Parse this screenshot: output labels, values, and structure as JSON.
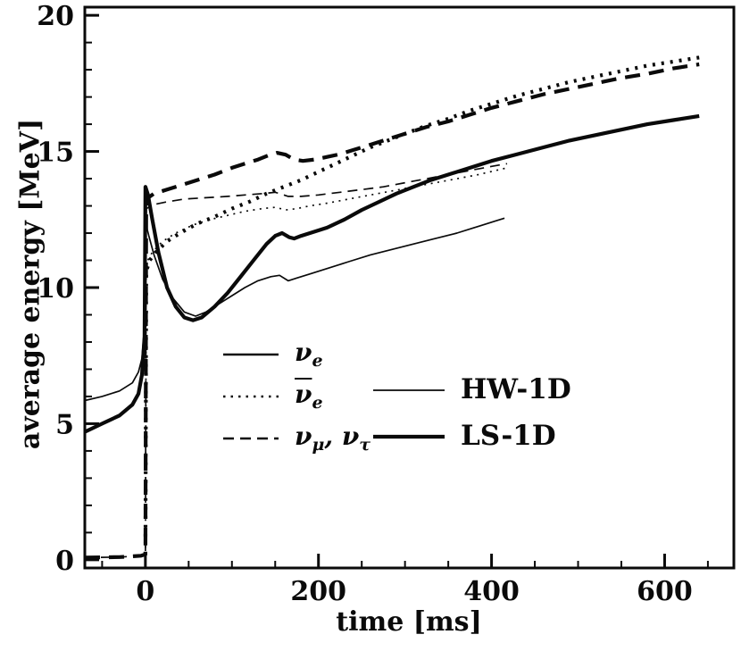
{
  "figure": {
    "background": "#ffffff",
    "ink": "#0a0a0a"
  },
  "chart_data": {
    "type": "line",
    "title": "",
    "xlabel": "time [ms]",
    "ylabel": "average energy [MeV]",
    "xlim": [
      -70,
      680
    ],
    "ylim": [
      -0.3,
      20.3
    ],
    "xticks": [
      0,
      200,
      400,
      600
    ],
    "yticks": [
      0,
      5,
      10,
      15,
      20
    ],
    "x_minor_step": 50,
    "y_minor_step": 1,
    "grid": false,
    "legend_position": "inside-center",
    "series": [
      {
        "name": "HW-1D nu_e",
        "model": "HW-1D",
        "species": "nu_e",
        "dash": "solid",
        "weight": "thin",
        "points": [
          [
            -70,
            5.85
          ],
          [
            -50,
            6.0
          ],
          [
            -30,
            6.2
          ],
          [
            -15,
            6.5
          ],
          [
            -8,
            6.9
          ],
          [
            -4,
            7.4
          ],
          [
            -1,
            8.6
          ],
          [
            0,
            12.4
          ],
          [
            4,
            11.9
          ],
          [
            10,
            11.2
          ],
          [
            20,
            10.3
          ],
          [
            32,
            9.6
          ],
          [
            45,
            9.1
          ],
          [
            58,
            8.95
          ],
          [
            70,
            9.1
          ],
          [
            85,
            9.4
          ],
          [
            100,
            9.7
          ],
          [
            115,
            10.0
          ],
          [
            130,
            10.25
          ],
          [
            145,
            10.4
          ],
          [
            155,
            10.45
          ],
          [
            165,
            10.25
          ],
          [
            175,
            10.35
          ],
          [
            190,
            10.5
          ],
          [
            210,
            10.7
          ],
          [
            235,
            10.95
          ],
          [
            260,
            11.2
          ],
          [
            285,
            11.4
          ],
          [
            310,
            11.6
          ],
          [
            335,
            11.8
          ],
          [
            360,
            12.0
          ],
          [
            385,
            12.25
          ],
          [
            405,
            12.45
          ],
          [
            415,
            12.55
          ]
        ]
      },
      {
        "name": "HW-1D nubar_e",
        "model": "HW-1D",
        "species": "nubar_e",
        "dash": "dotted",
        "weight": "thin",
        "points": [
          [
            0,
            0.2
          ],
          [
            1,
            10.9
          ],
          [
            8,
            11.3
          ],
          [
            20,
            11.7
          ],
          [
            35,
            12.0
          ],
          [
            55,
            12.3
          ],
          [
            75,
            12.5
          ],
          [
            95,
            12.65
          ],
          [
            115,
            12.8
          ],
          [
            135,
            12.9
          ],
          [
            150,
            12.95
          ],
          [
            162,
            12.85
          ],
          [
            175,
            12.9
          ],
          [
            190,
            13.0
          ],
          [
            210,
            13.1
          ],
          [
            235,
            13.25
          ],
          [
            260,
            13.4
          ],
          [
            285,
            13.55
          ],
          [
            310,
            13.7
          ],
          [
            335,
            13.85
          ],
          [
            360,
            14.0
          ],
          [
            385,
            14.15
          ],
          [
            405,
            14.3
          ],
          [
            418,
            14.4
          ]
        ]
      },
      {
        "name": "HW-1D nu_mu_tau",
        "model": "HW-1D",
        "species": "nu_mu_tau",
        "dash": "dashed",
        "weight": "thin",
        "points": [
          [
            -70,
            0.08
          ],
          [
            -30,
            0.1
          ],
          [
            -5,
            0.15
          ],
          [
            0,
            0.2
          ],
          [
            1,
            12.9
          ],
          [
            10,
            13.05
          ],
          [
            25,
            13.15
          ],
          [
            45,
            13.25
          ],
          [
            70,
            13.3
          ],
          [
            95,
            13.35
          ],
          [
            115,
            13.4
          ],
          [
            135,
            13.45
          ],
          [
            150,
            13.5
          ],
          [
            165,
            13.35
          ],
          [
            180,
            13.35
          ],
          [
            200,
            13.4
          ],
          [
            225,
            13.5
          ],
          [
            250,
            13.6
          ],
          [
            275,
            13.7
          ],
          [
            300,
            13.85
          ],
          [
            325,
            14.0
          ],
          [
            350,
            14.15
          ],
          [
            375,
            14.3
          ],
          [
            400,
            14.45
          ],
          [
            418,
            14.55
          ]
        ]
      },
      {
        "name": "LS-1D nu_e",
        "model": "LS-1D",
        "species": "nu_e",
        "dash": "solid",
        "weight": "thick",
        "points": [
          [
            -70,
            4.7
          ],
          [
            -50,
            5.0
          ],
          [
            -30,
            5.3
          ],
          [
            -15,
            5.7
          ],
          [
            -8,
            6.1
          ],
          [
            -4,
            6.8
          ],
          [
            -1,
            8.2
          ],
          [
            0,
            13.7
          ],
          [
            3,
            13.4
          ],
          [
            8,
            12.5
          ],
          [
            15,
            11.3
          ],
          [
            25,
            10.0
          ],
          [
            35,
            9.3
          ],
          [
            45,
            8.9
          ],
          [
            55,
            8.8
          ],
          [
            65,
            8.9
          ],
          [
            80,
            9.3
          ],
          [
            95,
            9.8
          ],
          [
            110,
            10.4
          ],
          [
            125,
            11.0
          ],
          [
            140,
            11.6
          ],
          [
            150,
            11.9
          ],
          [
            158,
            12.0
          ],
          [
            166,
            11.85
          ],
          [
            172,
            11.8
          ],
          [
            180,
            11.9
          ],
          [
            195,
            12.05
          ],
          [
            210,
            12.2
          ],
          [
            230,
            12.5
          ],
          [
            250,
            12.85
          ],
          [
            270,
            13.15
          ],
          [
            290,
            13.45
          ],
          [
            310,
            13.7
          ],
          [
            330,
            13.95
          ],
          [
            350,
            14.15
          ],
          [
            375,
            14.4
          ],
          [
            400,
            14.65
          ],
          [
            430,
            14.9
          ],
          [
            460,
            15.15
          ],
          [
            490,
            15.4
          ],
          [
            520,
            15.6
          ],
          [
            550,
            15.8
          ],
          [
            580,
            16.0
          ],
          [
            610,
            16.15
          ],
          [
            640,
            16.3
          ]
        ]
      },
      {
        "name": "LS-1D nubar_e",
        "model": "LS-1D",
        "species": "nubar_e",
        "dash": "dotted",
        "weight": "thick",
        "points": [
          [
            0,
            0.2
          ],
          [
            1,
            10.6
          ],
          [
            5,
            11.0
          ],
          [
            12,
            11.3
          ],
          [
            25,
            11.7
          ],
          [
            40,
            12.0
          ],
          [
            60,
            12.35
          ],
          [
            80,
            12.6
          ],
          [
            100,
            12.9
          ],
          [
            120,
            13.15
          ],
          [
            140,
            13.45
          ],
          [
            160,
            13.7
          ],
          [
            180,
            13.95
          ],
          [
            200,
            14.25
          ],
          [
            220,
            14.55
          ],
          [
            240,
            14.85
          ],
          [
            260,
            15.15
          ],
          [
            280,
            15.4
          ],
          [
            300,
            15.65
          ],
          [
            325,
            15.95
          ],
          [
            350,
            16.2
          ],
          [
            375,
            16.5
          ],
          [
            400,
            16.75
          ],
          [
            430,
            17.05
          ],
          [
            460,
            17.3
          ],
          [
            490,
            17.55
          ],
          [
            520,
            17.75
          ],
          [
            550,
            17.95
          ],
          [
            580,
            18.15
          ],
          [
            610,
            18.3
          ],
          [
            640,
            18.45
          ]
        ]
      },
      {
        "name": "LS-1D nu_mu_tau",
        "model": "LS-1D",
        "species": "nu_mu_tau",
        "dash": "dashed",
        "weight": "thick",
        "points": [
          [
            -70,
            0.08
          ],
          [
            -30,
            0.1
          ],
          [
            -5,
            0.15
          ],
          [
            0,
            0.2
          ],
          [
            1,
            13.25
          ],
          [
            10,
            13.45
          ],
          [
            25,
            13.6
          ],
          [
            40,
            13.75
          ],
          [
            60,
            13.95
          ],
          [
            80,
            14.15
          ],
          [
            100,
            14.4
          ],
          [
            115,
            14.55
          ],
          [
            130,
            14.7
          ],
          [
            142,
            14.85
          ],
          [
            152,
            14.95
          ],
          [
            162,
            14.88
          ],
          [
            172,
            14.7
          ],
          [
            182,
            14.65
          ],
          [
            195,
            14.7
          ],
          [
            210,
            14.8
          ],
          [
            225,
            14.9
          ],
          [
            240,
            15.05
          ],
          [
            260,
            15.25
          ],
          [
            280,
            15.45
          ],
          [
            300,
            15.65
          ],
          [
            325,
            15.9
          ],
          [
            350,
            16.1
          ],
          [
            375,
            16.35
          ],
          [
            400,
            16.6
          ],
          [
            430,
            16.85
          ],
          [
            460,
            17.1
          ],
          [
            490,
            17.3
          ],
          [
            520,
            17.5
          ],
          [
            550,
            17.7
          ],
          [
            580,
            17.85
          ],
          [
            610,
            18.05
          ],
          [
            640,
            18.2
          ]
        ]
      }
    ]
  },
  "legend_species": {
    "separator": ", ",
    "items": [
      {
        "dash": "solid",
        "weight": "medium",
        "parts": [
          {
            "base": "ν",
            "bar": false,
            "sub": "e"
          }
        ]
      },
      {
        "dash": "dotted",
        "weight": "medium",
        "parts": [
          {
            "base": "ν",
            "bar": true,
            "sub": "e"
          }
        ]
      },
      {
        "dash": "dashed",
        "weight": "medium",
        "parts": [
          {
            "base": "ν",
            "bar": false,
            "sub": "μ"
          },
          {
            "base": "ν",
            "bar": false,
            "sub": "τ"
          }
        ]
      }
    ]
  },
  "legend_models": {
    "items": [
      {
        "weight": "thin",
        "label": "HW-1D"
      },
      {
        "weight": "thick",
        "label": "LS-1D"
      }
    ]
  }
}
